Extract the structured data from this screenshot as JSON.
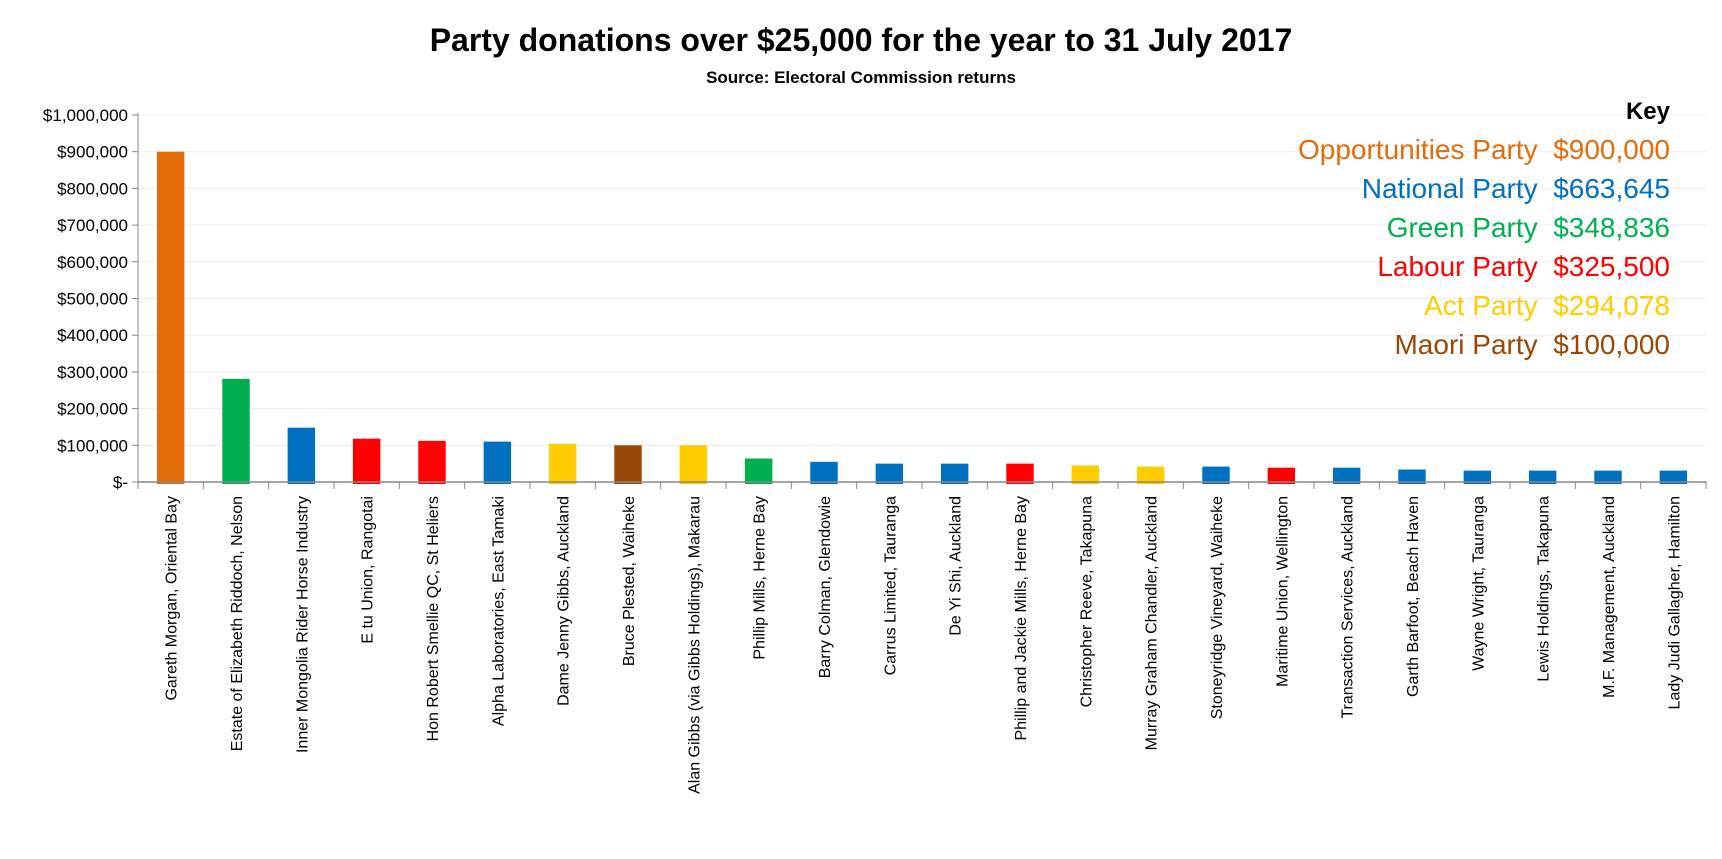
{
  "chart_data": {
    "type": "bar",
    "title": "Party donations over $25,000 for the year to 31 July 2017",
    "subtitle": "Source: Electoral Commission returns",
    "xlabel": "",
    "ylabel": "",
    "ylim": [
      0,
      1000000
    ],
    "yticks": [
      0,
      100000,
      200000,
      300000,
      400000,
      500000,
      600000,
      700000,
      800000,
      900000,
      1000000
    ],
    "ytick_labels": [
      "$-",
      "$100,000",
      "$200,000",
      "$300,000",
      "$400,000",
      "$500,000",
      "$600,000",
      "$700,000",
      "$800,000",
      "$900,000",
      "$1,000,000"
    ],
    "grid": true,
    "categories": [
      "Gareth Morgan, Oriental Bay",
      "Estate of Elizabeth Riddoch, Nelson",
      "Inner Mongolia Rider Horse Industry",
      "E tu Union, Rangotai",
      "Hon Robert Smellie QC, St Heliers",
      "Alpha Laboratories, East Tamaki",
      "Dame Jenny Gibbs, Auckland",
      "Bruce Plested,  Waiheke",
      "Alan Gibbs (via Gibbs Holdings), Makarau",
      "Phillip Mills, Herne Bay",
      "Barry Colman, Glendowie",
      "Carrus Limited, Tauranga",
      "De Yi Shi, Auckland",
      "Phillip and Jackie Mills, Herne Bay",
      "Christopher Reeve, Takapuna",
      "Murray Graham Chandler, Auckland",
      "Stoneyridge Vineyard, Waiheke",
      "Maritime Union, Wellington",
      "Transaction Services, Auckland",
      "Garth Barfoot, Beach Haven",
      "Wayne Wright, Tauranga",
      "Lewis Holdings, Takapuna",
      "M.F. Management, Auckland",
      "Lady Judi Gallagher, Hamilton"
    ],
    "values": [
      900000,
      281000,
      148000,
      118000,
      112000,
      110000,
      104000,
      100000,
      100000,
      64000,
      55000,
      50000,
      50000,
      50000,
      45000,
      42000,
      42000,
      39000,
      39000,
      34000,
      31000,
      31000,
      31000,
      31000
    ],
    "parties": [
      "Opportunities",
      "Green",
      "National",
      "Labour",
      "Labour",
      "National",
      "Act",
      "Maori",
      "Act",
      "Green",
      "National",
      "National",
      "National",
      "Labour",
      "Act",
      "Act",
      "National",
      "Labour",
      "National",
      "National",
      "National",
      "National",
      "National",
      "National"
    ],
    "legend": {
      "title": "Key",
      "placement": "top-right",
      "entries": [
        {
          "party": "Opportunities",
          "label": "Opportunities Party",
          "total": "$900,000",
          "color": "#E36C0A"
        },
        {
          "party": "National",
          "label": "National Party",
          "total": "$663,645",
          "color": "#0070C0"
        },
        {
          "party": "Green",
          "label": "Green Party",
          "total": "$348,836",
          "color": "#00B050"
        },
        {
          "party": "Labour",
          "label": "Labour Party",
          "total": "$325,500",
          "color": "#FF0000"
        },
        {
          "party": "Act",
          "label": "Act Party",
          "total": "$294,078",
          "color": "#FFCC00"
        },
        {
          "party": "Maori",
          "label": "Maori Party",
          "total": "$100,000",
          "color": "#974706"
        }
      ]
    }
  }
}
